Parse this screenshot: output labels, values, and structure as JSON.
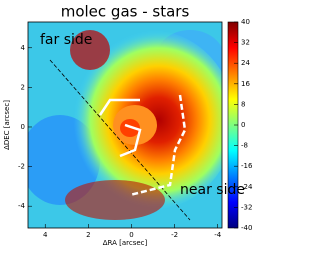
{
  "chart_data": {
    "type": "image",
    "title": "molec gas - stars",
    "x_label": "ΔRA [arcsec]",
    "y_label": "ΔDEC [arcsec]",
    "xlim": [
      4.8,
      -4.2
    ],
    "xticks": [
      4,
      2,
      0,
      -2,
      -4
    ],
    "ylim": [
      -5.1,
      5.3
    ],
    "yticks": [
      4,
      2,
      0,
      -2,
      -4
    ],
    "colorbar": {
      "lim": [
        -40,
        40
      ],
      "ticks": [
        -40,
        -32,
        -24,
        -16,
        -8,
        0,
        8,
        16,
        24,
        32,
        40
      ],
      "colormap": "jet"
    },
    "annotations": [
      "far side",
      "near side"
    ]
  }
}
